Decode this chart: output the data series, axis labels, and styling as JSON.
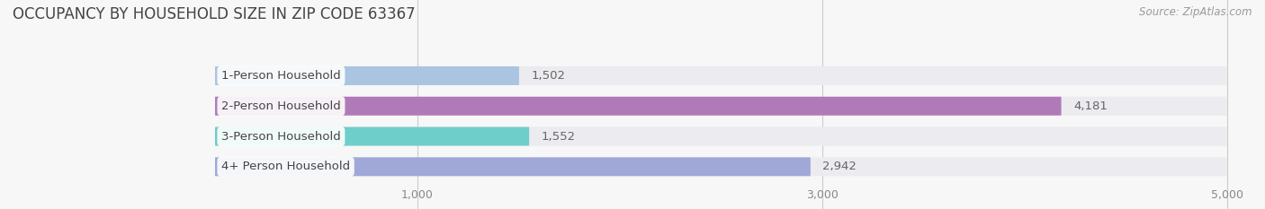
{
  "title": "OCCUPANCY BY HOUSEHOLD SIZE IN ZIP CODE 63367",
  "source": "Source: ZipAtlas.com",
  "categories": [
    "1-Person Household",
    "2-Person Household",
    "3-Person Household",
    "4+ Person Household"
  ],
  "values": [
    1502,
    4181,
    1552,
    2942
  ],
  "bar_colors": [
    "#aac4e2",
    "#b07ab8",
    "#6ececa",
    "#a0a8d8"
  ],
  "xlim": [
    0,
    5000
  ],
  "xticks": [
    1000,
    3000,
    5000
  ],
  "background_color": "#f7f7f7",
  "bar_bg_color": "#ebebf0",
  "title_fontsize": 12,
  "source_fontsize": 8.5,
  "label_fontsize": 9.5,
  "value_fontsize": 9.5,
  "tick_fontsize": 9
}
